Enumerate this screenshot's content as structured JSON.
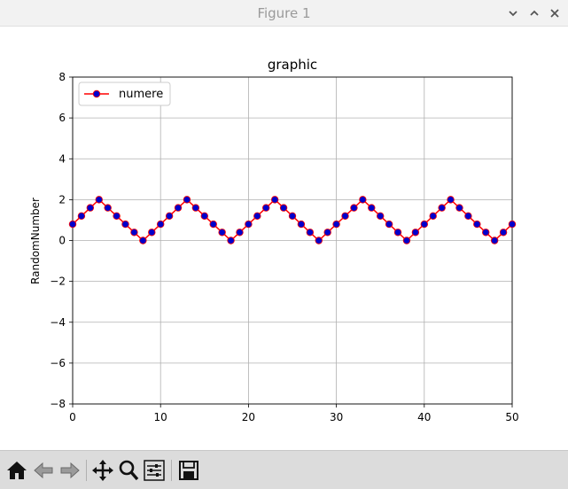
{
  "window": {
    "title": "Figure 1",
    "controls": [
      "minimize",
      "maximize",
      "close"
    ]
  },
  "toolbar": {
    "buttons": [
      "home-icon",
      "back-icon",
      "forward-icon",
      "pan-icon",
      "zoom-icon",
      "configure-subplots-icon",
      "save-icon"
    ]
  },
  "colors": {
    "line": "#ff0000",
    "marker_face": "#0000cc",
    "grid": "#b0b0b0",
    "toolbar_bg": "#dcdcdc"
  },
  "chart_data": {
    "type": "line",
    "title": "graphic",
    "xlabel": "",
    "ylabel": "RandomNumber",
    "xlim": [
      0,
      50
    ],
    "ylim": [
      -8,
      8
    ],
    "xticks": [
      0,
      10,
      20,
      30,
      40,
      50
    ],
    "yticks": [
      -8,
      -6,
      -4,
      -2,
      0,
      2,
      4,
      6,
      8
    ],
    "grid": true,
    "legend_position": "top-left",
    "series": [
      {
        "name": "numere",
        "line_color": "#ff0000",
        "marker_color": "#0000cc",
        "x": [
          0,
          1,
          2,
          3,
          4,
          5,
          6,
          7,
          8,
          9,
          10,
          11,
          12,
          13,
          14,
          15,
          16,
          17,
          18,
          19,
          20,
          21,
          22,
          23,
          24,
          25,
          26,
          27,
          28,
          29,
          30,
          31,
          32,
          33,
          34,
          35,
          36,
          37,
          38,
          39,
          40,
          41,
          42,
          43,
          44,
          45,
          46,
          47,
          48,
          49,
          50
        ],
        "y": [
          0.8,
          1.2,
          1.6,
          2.0,
          1.6,
          1.2,
          0.8,
          0.4,
          0.0,
          0.4,
          0.8,
          1.2,
          1.6,
          2.0,
          1.6,
          1.2,
          0.8,
          0.4,
          0.0,
          0.4,
          0.8,
          1.2,
          1.6,
          2.0,
          1.6,
          1.2,
          0.8,
          0.4,
          0.0,
          0.4,
          0.8,
          1.2,
          1.6,
          2.0,
          1.6,
          1.2,
          0.8,
          0.4,
          0.0,
          0.4,
          0.8,
          1.2,
          1.6,
          2.0,
          1.6,
          1.2,
          0.8,
          0.4,
          0.0,
          0.4,
          0.8
        ]
      }
    ]
  }
}
